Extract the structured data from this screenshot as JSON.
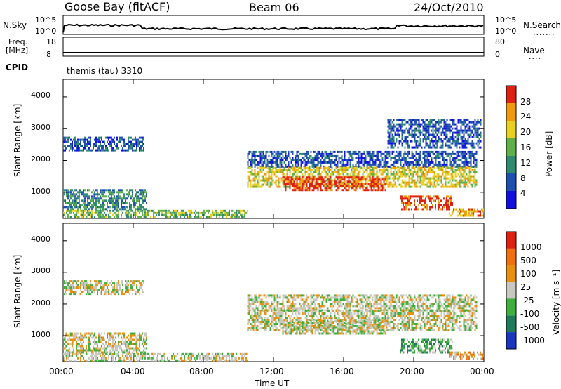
{
  "header": {
    "station": "Goose Bay (fitACF)",
    "beam": "Beam 06",
    "date": "24/Oct/2010"
  },
  "top_panels": {
    "nsky_label": "N.Sky",
    "nsky_ticks": [
      "10^5",
      "10^0"
    ],
    "nsearch_label": "N.Search",
    "nsearch_ticks": [
      "10^5",
      "10^0"
    ],
    "freq_label_1": "Freq.",
    "freq_label_2": "[MHz]",
    "freq_ticks": [
      "18",
      "8"
    ],
    "nave_label": "Nave",
    "nave_ticks": [
      "80",
      "0"
    ],
    "cpid_label": "CPID",
    "cpid_value": "themis (tau) 3310"
  },
  "chart_data": [
    {
      "type": "heatmap",
      "title": "",
      "ylabel": "Slant Range [km]",
      "xlabel": "",
      "xlim": [
        0,
        24
      ],
      "ylim": [
        180,
        4550
      ],
      "y_ticks": [
        "4000",
        "3000",
        "2000",
        "1000"
      ],
      "colorbar_label": "Power [dB]",
      "colorbar_ticks": [
        "28",
        "24",
        "20",
        "16",
        "12",
        "8",
        "4"
      ],
      "colors": [
        "#1010e0",
        "#1d4fb0",
        "#2f8a70",
        "#5fb04a",
        "#e8d020",
        "#f09a10",
        "#e02010"
      ],
      "regions": [
        {
          "t": [
            0.0,
            4.6
          ],
          "r": [
            2350,
            2750
          ],
          "level": 1
        },
        {
          "t": [
            0.0,
            4.8
          ],
          "r": [
            500,
            1100
          ],
          "level": 2
        },
        {
          "t": [
            0.0,
            10.5
          ],
          "r": [
            200,
            450
          ],
          "level": 3
        },
        {
          "t": [
            10.5,
            23.6
          ],
          "r": [
            1800,
            2300
          ],
          "level": 1
        },
        {
          "t": [
            10.5,
            23.6
          ],
          "r": [
            1150,
            1800
          ],
          "level": 4
        },
        {
          "t": [
            12.5,
            18.5
          ],
          "r": [
            1050,
            1500
          ],
          "level": 6
        },
        {
          "t": [
            19.2,
            22.2
          ],
          "r": [
            500,
            900
          ],
          "level": 6
        },
        {
          "t": [
            22.0,
            24.0
          ],
          "r": [
            250,
            500
          ],
          "level": 5
        },
        {
          "t": [
            18.5,
            23.8
          ],
          "r": [
            2400,
            3300
          ],
          "level": 1
        }
      ]
    },
    {
      "type": "heatmap",
      "title": "",
      "ylabel": "Slant Range [km]",
      "xlabel": "Time UT",
      "xlim": [
        0,
        24
      ],
      "ylim": [
        180,
        4550
      ],
      "x_ticks": [
        "00:00",
        "04:00",
        "08:00",
        "12:00",
        "16:00",
        "20:00",
        "00:00"
      ],
      "y_ticks": [
        "4000",
        "3000",
        "2000",
        "1000"
      ],
      "colorbar_label": "Velocity [m s⁻¹]",
      "colorbar_ticks": [
        "1000",
        "500",
        "100",
        "25",
        "-25",
        "-100",
        "-500",
        "-1000"
      ],
      "colors": [
        "#1a35c0",
        "#1f7a5a",
        "#3fb03f",
        "#c8c8c0",
        "#e89010",
        "#f07010",
        "#e02010"
      ],
      "regions": [
        {
          "t": [
            0.0,
            4.6
          ],
          "r": [
            2350,
            2750
          ],
          "level": 3
        },
        {
          "t": [
            0.0,
            4.8
          ],
          "r": [
            500,
            1100
          ],
          "level": 3
        },
        {
          "t": [
            0.0,
            10.5
          ],
          "r": [
            200,
            450
          ],
          "level": 3
        },
        {
          "t": [
            10.5,
            23.6
          ],
          "r": [
            1800,
            2300
          ],
          "level": 3
        },
        {
          "t": [
            10.5,
            23.6
          ],
          "r": [
            1150,
            1800
          ],
          "level": 3
        },
        {
          "t": [
            12.5,
            18.5
          ],
          "r": [
            1050,
            1500
          ],
          "level": 3
        },
        {
          "t": [
            19.2,
            22.2
          ],
          "r": [
            500,
            900
          ],
          "level": 2
        },
        {
          "t": [
            22.0,
            24.0
          ],
          "r": [
            250,
            500
          ],
          "level": 4
        }
      ]
    }
  ]
}
